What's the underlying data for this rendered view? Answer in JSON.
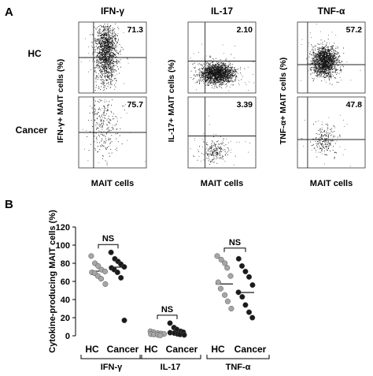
{
  "figure": {
    "panel_a_label": "A",
    "panel_b_label": "B",
    "col_titles": [
      "IFN-γ",
      "IL-17",
      "TNF-α"
    ],
    "row_labels": [
      "HC",
      "Cancer"
    ],
    "y_axis_labels": [
      "IFN-γ+ MAIT cells (%)",
      "IL-17+ MAIT cells (%)",
      "TNF-α+ MAIT cells (%)"
    ],
    "x_axis_label": "MAIT cells",
    "flow_percents": [
      [
        "71.3",
        "75.7"
      ],
      [
        "2.10",
        "3.39"
      ],
      [
        "57.2",
        "47.8"
      ]
    ]
  },
  "chart_data": {
    "type": "scatter",
    "ylabel": "Cytokine-producing MAIT cells (%)",
    "ylim": [
      0,
      120
    ],
    "yticks": [
      "0",
      "20",
      "40",
      "60",
      "80",
      "100",
      "120"
    ],
    "group_labels": [
      "HC",
      "Cancer"
    ],
    "cytokines": [
      "IFN-γ",
      "IL-17",
      "TNF-α"
    ],
    "significance": [
      "NS",
      "NS",
      "NS"
    ],
    "colors": {
      "HC": "#a6a6a6",
      "Cancer": "#1a1a1a"
    },
    "series": [
      {
        "name": "HC",
        "cytokine": "IFN-γ",
        "median": 71.3,
        "values": [
          88,
          80,
          77,
          73,
          71,
          70,
          69,
          66,
          63,
          57
        ]
      },
      {
        "name": "Cancer",
        "cytokine": "IFN-γ",
        "median": 75.7,
        "values": [
          92,
          85,
          82,
          79,
          76,
          75,
          73,
          70,
          64,
          17
        ]
      },
      {
        "name": "HC",
        "cytokine": "IL-17",
        "median": 2.1,
        "values": [
          5,
          4,
          3,
          2.5,
          2,
          1.8,
          1.5,
          1,
          0.5
        ]
      },
      {
        "name": "Cancer",
        "cytokine": "IL-17",
        "median": 3.4,
        "values": [
          14,
          9,
          7,
          5,
          4,
          3.5,
          3,
          2,
          1.5,
          1
        ]
      },
      {
        "name": "HC",
        "cytokine": "TNF-α",
        "median": 57.2,
        "values": [
          88,
          84,
          80,
          75,
          66,
          59,
          52,
          45,
          38,
          30
        ]
      },
      {
        "name": "Cancer",
        "cytokine": "TNF-α",
        "median": 47.8,
        "values": [
          85,
          77,
          71,
          65,
          56,
          48,
          43,
          34,
          26,
          20
        ]
      }
    ]
  }
}
